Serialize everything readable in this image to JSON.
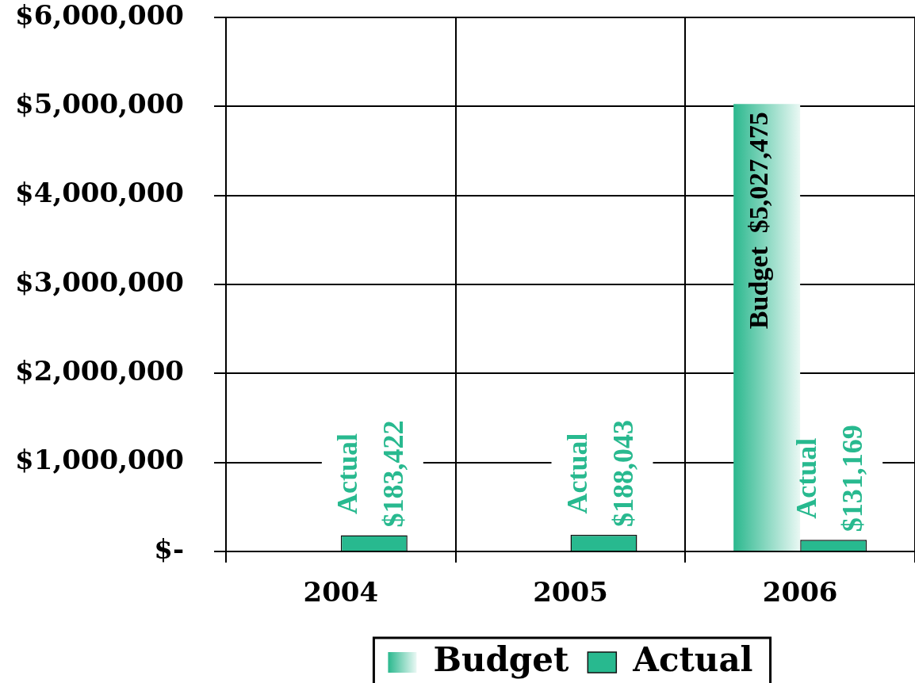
{
  "chart_data": {
    "type": "bar",
    "categories": [
      "2004",
      "2005",
      "2006"
    ],
    "series": [
      {
        "name": "Budget",
        "color": "#2bb88e",
        "values": [
          null,
          null,
          5027475
        ],
        "value_labels": [
          null,
          null,
          "$5,027,475"
        ]
      },
      {
        "name": "Actual",
        "color": "#28b98f",
        "values": [
          183422,
          188043,
          131169
        ],
        "value_labels": [
          "$183,422",
          "$188,043",
          "$131,169"
        ]
      }
    ],
    "ylim": [
      0,
      6000000
    ],
    "yticks": [
      {
        "value": 0,
        "label": "$-"
      },
      {
        "value": 1000000,
        "label": "$1,000,000"
      },
      {
        "value": 2000000,
        "label": "$2,000,000"
      },
      {
        "value": 3000000,
        "label": "$3,000,000"
      },
      {
        "value": 4000000,
        "label": "$4,000,000"
      },
      {
        "value": 5000000,
        "label": "$5,000,000"
      },
      {
        "value": 6000000,
        "label": "$6,000,000"
      }
    ],
    "grid": true,
    "legend": "bottom"
  }
}
